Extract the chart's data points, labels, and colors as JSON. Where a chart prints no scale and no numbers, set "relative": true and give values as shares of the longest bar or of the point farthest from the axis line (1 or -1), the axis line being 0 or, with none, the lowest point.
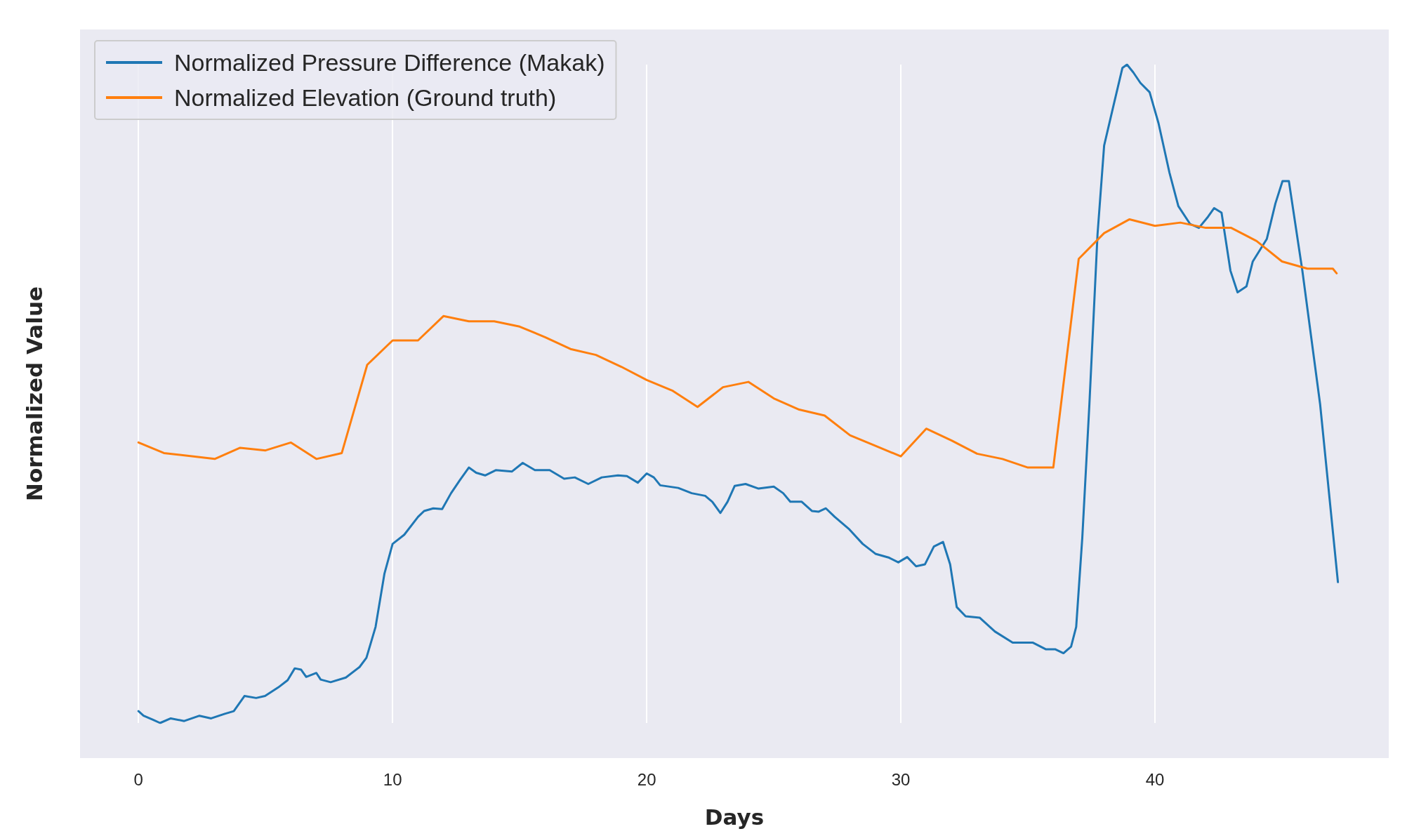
{
  "chart_data": {
    "type": "line",
    "relative": true,
    "xlabel": "Days",
    "ylabel": "Normalized Value",
    "xlim": [
      -2.3,
      49.2
    ],
    "xticks": [
      0,
      10,
      20,
      30,
      40
    ],
    "grid": "x",
    "legend": "top left",
    "marker": "none",
    "line_style": "solid",
    "series": [
      {
        "name": "Normalized Pressure Difference (Makak)",
        "color": "#1f77b4",
        "x": [
          0,
          0.2,
          0.57,
          0.85,
          1.27,
          1.8,
          2.4,
          2.86,
          3.4,
          3.75,
          4.17,
          4.63,
          4.98,
          5.5,
          5.87,
          6.15,
          6.4,
          6.6,
          7.0,
          7.17,
          7.56,
          8.16,
          8.7,
          8.97,
          9.33,
          9.68,
          10.0,
          10.46,
          11.0,
          11.24,
          11.6,
          11.95,
          12.3,
          12.65,
          13.0,
          13.29,
          13.64,
          14.06,
          14.7,
          15.12,
          15.6,
          16.18,
          16.75,
          17.17,
          17.7,
          18.23,
          18.87,
          19.22,
          19.65,
          20.0,
          20.28,
          20.53,
          21.24,
          21.77,
          22.3,
          22.58,
          22.9,
          23.18,
          23.46,
          23.89,
          24.4,
          25.0,
          25.37,
          25.65,
          26.1,
          26.5,
          26.77,
          27.05,
          27.4,
          27.95,
          28.5,
          29.0,
          29.54,
          29.9,
          30.25,
          30.6,
          30.95,
          31.3,
          31.66,
          31.94,
          32.2,
          32.55,
          33.1,
          33.7,
          34.4,
          35.2,
          35.7,
          36.07,
          36.4,
          36.7,
          36.9,
          37.14,
          37.42,
          37.74,
          38.0,
          38.37,
          38.72,
          38.9,
          39.15,
          39.43,
          39.79,
          40.14,
          40.57,
          40.92,
          41.38,
          41.73,
          42.09,
          42.33,
          42.62,
          42.97,
          43.25,
          43.6,
          43.85,
          44.4,
          44.74,
          45.02,
          45.27,
          45.8,
          46.5,
          47.2
        ],
        "values": [
          0.018,
          0.011,
          0.005,
          0,
          0.007,
          0.003,
          0.011,
          0.007,
          0.014,
          0.018,
          0.041,
          0.038,
          0.041,
          0.054,
          0.065,
          0.083,
          0.081,
          0.07,
          0.076,
          0.066,
          0.062,
          0.069,
          0.085,
          0.099,
          0.146,
          0.227,
          0.272,
          0.286,
          0.313,
          0.322,
          0.326,
          0.325,
          0.349,
          0.369,
          0.388,
          0.38,
          0.376,
          0.384,
          0.382,
          0.395,
          0.384,
          0.384,
          0.371,
          0.373,
          0.363,
          0.373,
          0.376,
          0.375,
          0.365,
          0.379,
          0.373,
          0.361,
          0.357,
          0.349,
          0.345,
          0.336,
          0.319,
          0.336,
          0.36,
          0.363,
          0.356,
          0.359,
          0.349,
          0.336,
          0.336,
          0.322,
          0.321,
          0.326,
          0.313,
          0.295,
          0.272,
          0.257,
          0.251,
          0.244,
          0.252,
          0.238,
          0.241,
          0.268,
          0.275,
          0.241,
          0.176,
          0.162,
          0.16,
          0.139,
          0.122,
          0.122,
          0.112,
          0.112,
          0.106,
          0.116,
          0.146,
          0.281,
          0.484,
          0.742,
          0.877,
          0.938,
          0.995,
          1.0,
          0.988,
          0.972,
          0.958,
          0.911,
          0.836,
          0.785,
          0.758,
          0.752,
          0.769,
          0.782,
          0.775,
          0.687,
          0.654,
          0.663,
          0.701,
          0.735,
          0.789,
          0.823,
          0.823,
          0.687,
          0.484,
          0.214
        ]
      },
      {
        "name": "Normalized Elevation (Ground truth)",
        "color": "#ff7f0e",
        "x": [
          0,
          1,
          3,
          4,
          5,
          6,
          7,
          8,
          9,
          10,
          11,
          12,
          13,
          14,
          15,
          16,
          17,
          18,
          19,
          20,
          21,
          22,
          23,
          24,
          25,
          26,
          27,
          28,
          29,
          30,
          31,
          32,
          33,
          34,
          35,
          36,
          37,
          38,
          39,
          40,
          41,
          42,
          43,
          44,
          45,
          46,
          47,
          47.15
        ],
        "values": [
          0.426,
          0.41,
          0.401,
          0.418,
          0.414,
          0.426,
          0.401,
          0.41,
          0.544,
          0.581,
          0.581,
          0.618,
          0.61,
          0.61,
          0.602,
          0.586,
          0.568,
          0.559,
          0.541,
          0.521,
          0.505,
          0.48,
          0.51,
          0.518,
          0.493,
          0.476,
          0.467,
          0.437,
          0.421,
          0.405,
          0.447,
          0.429,
          0.409,
          0.401,
          0.388,
          0.388,
          0.705,
          0.744,
          0.765,
          0.755,
          0.76,
          0.752,
          0.752,
          0.732,
          0.701,
          0.69,
          0.69,
          0.683
        ]
      }
    ]
  }
}
